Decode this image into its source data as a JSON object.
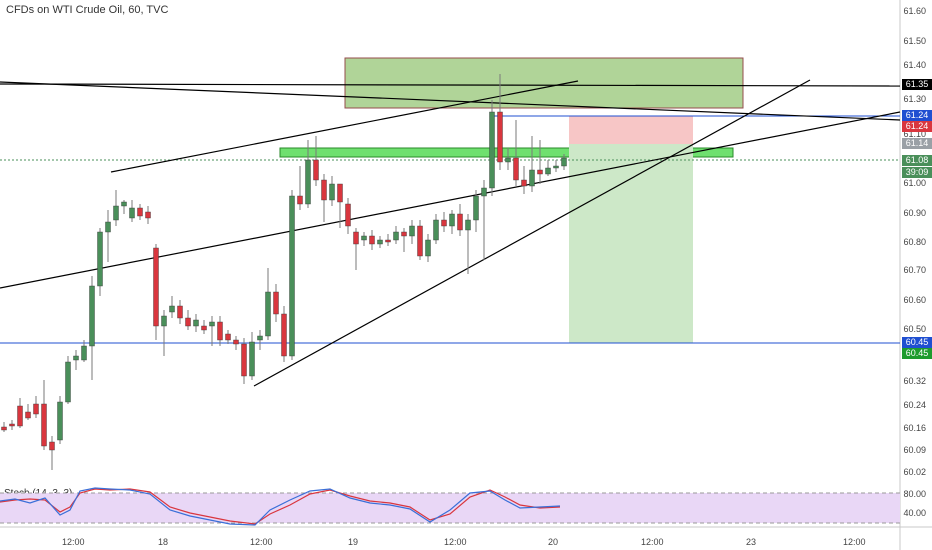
{
  "title": "CFDs on WTI Crude Oil, 60, TVC",
  "stoch_label": "Stoch (14, 3, 3)",
  "price_ticks": [
    "61.60",
    "61.50",
    "61.40",
    "61.30",
    "61.20",
    "61.10",
    "61.00",
    "60.90",
    "60.80",
    "60.70",
    "60.60",
    "60.50",
    "60.40",
    "60.32",
    "60.24",
    "60.16",
    "60.09",
    "60.02"
  ],
  "stoch_ticks": [
    "80.00",
    "40.00"
  ],
  "time_ticks": [
    "12:00",
    "18",
    "12:00",
    "19",
    "12:00",
    "20",
    "12:00",
    "23",
    "12:00"
  ],
  "badges": {
    "b1": {
      "text": "61.35",
      "color": "#000000"
    },
    "b2": {
      "text": "61.24",
      "color": "#1f4fd1"
    },
    "b3": {
      "text": "61.24",
      "color": "#d9363e"
    },
    "b4": {
      "text": "61.14",
      "color": "#9aa0a6"
    },
    "b5": {
      "text": "61.08",
      "color": "#4a8f5a"
    },
    "b6": {
      "text": "39:09",
      "color": "#4a8f5a"
    },
    "b7": {
      "text": "60.45",
      "color": "#1f4fd1"
    },
    "b8": {
      "text": "60.45",
      "color": "#1e9b2e"
    }
  },
  "colors": {
    "up": "#4a8f5a",
    "down": "#d9363e",
    "stoch_bg": "#e9d7f6"
  }
}
